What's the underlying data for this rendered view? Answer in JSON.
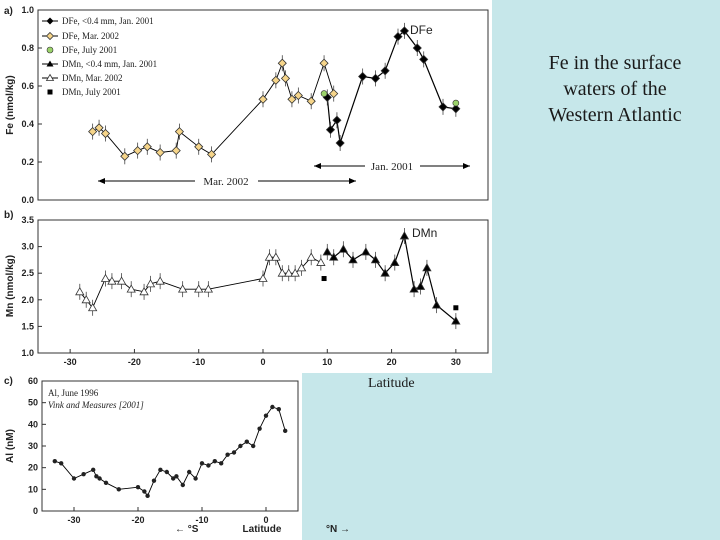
{
  "slide": {
    "title": "Fe in the surface waters of the Western Atlantic",
    "latitude_caption": "Latitude"
  },
  "chart_data": [
    {
      "panel": "a)",
      "type": "line",
      "ylabel": "Fe (nmol/kg)",
      "ylim": [
        0.0,
        1.0
      ],
      "yticks": [
        "0.0",
        "0.2",
        "0.4",
        "0.6",
        "0.8",
        "1.0"
      ],
      "xlim": [
        -35,
        35
      ],
      "series_label": "DFe",
      "legend": [
        "DFe, <0.4 mm, Jan. 2001",
        "DFe, Mar. 2002",
        "DFe, July 2001",
        "DMn, <0.4 mm, Jan. 2001",
        "DMn, Mar. 2002",
        "DMn, July 2001"
      ],
      "annotations": [
        "Mar. 2002",
        "Jan. 2001"
      ],
      "series": [
        {
          "name": "DFe, <0.4 mm, Jan. 2001",
          "x": [
            10,
            10.5,
            11.5,
            12,
            15.5,
            17.5,
            19,
            21,
            22,
            24,
            25,
            28,
            30
          ],
          "y": [
            0.54,
            0.37,
            0.42,
            0.3,
            0.65,
            0.64,
            0.68,
            0.86,
            0.89,
            0.8,
            0.74,
            0.49,
            0.48
          ]
        },
        {
          "name": "DFe, Mar. 2002",
          "x": [
            -26.5,
            -25.5,
            -24.5,
            -21.5,
            -19.5,
            -18,
            -16,
            -13.5,
            -13,
            -10,
            -8,
            0,
            2,
            3,
            3.5,
            4.5,
            5.5,
            7.5,
            9.5,
            11
          ],
          "y": [
            0.36,
            0.38,
            0.35,
            0.23,
            0.26,
            0.28,
            0.25,
            0.26,
            0.36,
            0.28,
            0.24,
            0.53,
            0.63,
            0.72,
            0.64,
            0.53,
            0.55,
            0.52,
            0.72,
            0.56
          ]
        },
        {
          "name": "DFe, July 2001",
          "x": [
            9.5,
            30
          ],
          "y": [
            0.56,
            0.51
          ]
        }
      ]
    },
    {
      "panel": "b)",
      "type": "line",
      "ylabel": "Mn (nmol/kg)",
      "ylim": [
        1.0,
        3.5
      ],
      "yticks": [
        "1.0",
        "1.5",
        "2.0",
        "2.5",
        "3.0",
        "3.5"
      ],
      "xlim": [
        -35,
        35
      ],
      "xticks": [
        "-30",
        "-20",
        "-10",
        "0",
        "10",
        "20",
        "30"
      ],
      "series_label": "DMn",
      "series": [
        {
          "name": "DMn, <0.4 mm, Jan. 2001",
          "x": [
            10,
            11,
            12.5,
            14,
            16,
            17.5,
            19,
            20.5,
            22,
            23.5,
            24.5,
            25.5,
            27,
            30
          ],
          "y": [
            2.9,
            2.8,
            2.95,
            2.75,
            2.9,
            2.75,
            2.5,
            2.7,
            3.2,
            2.2,
            2.25,
            2.6,
            1.9,
            1.6
          ]
        },
        {
          "name": "DMn, Mar. 2002",
          "x": [
            -28.5,
            -27.5,
            -26.5,
            -24.5,
            -23.5,
            -22,
            -20.5,
            -18.5,
            -17.5,
            -16,
            -12.5,
            -10,
            -8.5,
            0,
            1,
            2,
            3,
            4,
            5,
            6,
            7.5,
            9
          ],
          "y": [
            2.15,
            2.0,
            1.85,
            2.4,
            2.35,
            2.35,
            2.2,
            2.15,
            2.3,
            2.35,
            2.2,
            2.2,
            2.2,
            2.4,
            2.8,
            2.8,
            2.5,
            2.5,
            2.5,
            2.6,
            2.8,
            2.7
          ]
        },
        {
          "name": "DMn, July 2001",
          "x": [
            9.5,
            30
          ],
          "y": [
            2.4,
            1.85
          ]
        }
      ]
    },
    {
      "panel": "c)",
      "type": "scatter",
      "ylabel": "Al (nM)",
      "ylim": [
        0,
        60
      ],
      "yticks": [
        "0",
        "10",
        "20",
        "30",
        "40",
        "50",
        "60"
      ],
      "xlim": [
        -35,
        5
      ],
      "xticks": [
        "-30",
        "-20",
        "-10",
        "0"
      ],
      "xlabel": "Latitude",
      "xlabel_left": "← °S",
      "xlabel_right": "°N →",
      "legend": [
        "Al, June 1996",
        "Vink and Measures [2001]"
      ],
      "series": [
        {
          "name": "Al, June 1996",
          "x": [
            -33,
            -32,
            -30,
            -28.5,
            -27,
            -26.5,
            -26,
            -25,
            -23,
            -20,
            -19,
            -18.5,
            -17.5,
            -16.5,
            -15.5,
            -14.5,
            -14,
            -13,
            -12,
            -11,
            -10,
            -9,
            -8,
            -7,
            -6,
            -5,
            -4,
            -3,
            -2,
            -1,
            0,
            1,
            2,
            3
          ],
          "y": [
            23,
            22,
            15,
            17,
            19,
            16,
            15,
            13,
            10,
            11,
            9,
            7,
            14,
            19,
            18,
            15,
            16,
            12,
            18,
            15,
            22,
            21,
            23,
            22,
            26,
            27,
            30,
            32,
            30,
            38,
            44,
            48,
            47,
            37
          ]
        }
      ]
    }
  ]
}
